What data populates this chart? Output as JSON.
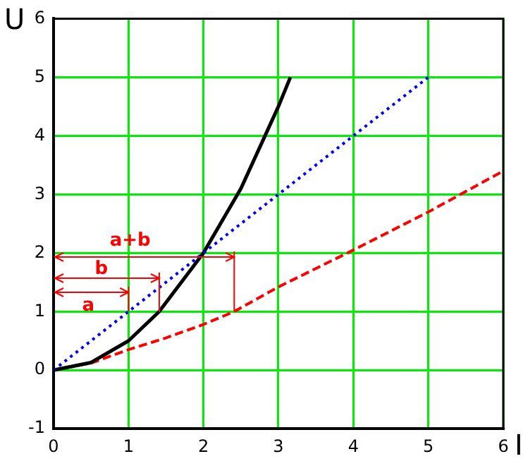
{
  "chart_data": {
    "type": "line",
    "xlabel": "I",
    "ylabel": "U",
    "xlim": [
      0,
      6
    ],
    "ylim": [
      -1,
      6
    ],
    "xticks": [
      0,
      1,
      2,
      3,
      4,
      5,
      6
    ],
    "yticks": [
      -1,
      0,
      1,
      2,
      3,
      4,
      5,
      6
    ],
    "grid": true,
    "legend": false,
    "marker": "none",
    "series": [
      {
        "color": "#0000ff",
        "line_style": "dotted",
        "x": [
          0,
          1,
          5
        ],
        "values": [
          0,
          1,
          5
        ]
      },
      {
        "color": "#000000",
        "line_style": "solid",
        "x": [
          0,
          0.5,
          1,
          1.41,
          2,
          2.5,
          3,
          3.16
        ],
        "values": [
          0,
          0.13,
          0.5,
          1,
          2,
          3.1,
          4.5,
          5
        ]
      },
      {
        "color": "#ff0000",
        "line_style": "dashed",
        "x": [
          0,
          0.5,
          1,
          1.5,
          2,
          2.41,
          3,
          4,
          5,
          6
        ],
        "values": [
          0,
          0.12,
          0.35,
          0.55,
          0.78,
          1,
          1.42,
          2.05,
          2.7,
          3.4
        ]
      }
    ],
    "annotations": [
      "a",
      "b",
      "a+b"
    ]
  }
}
